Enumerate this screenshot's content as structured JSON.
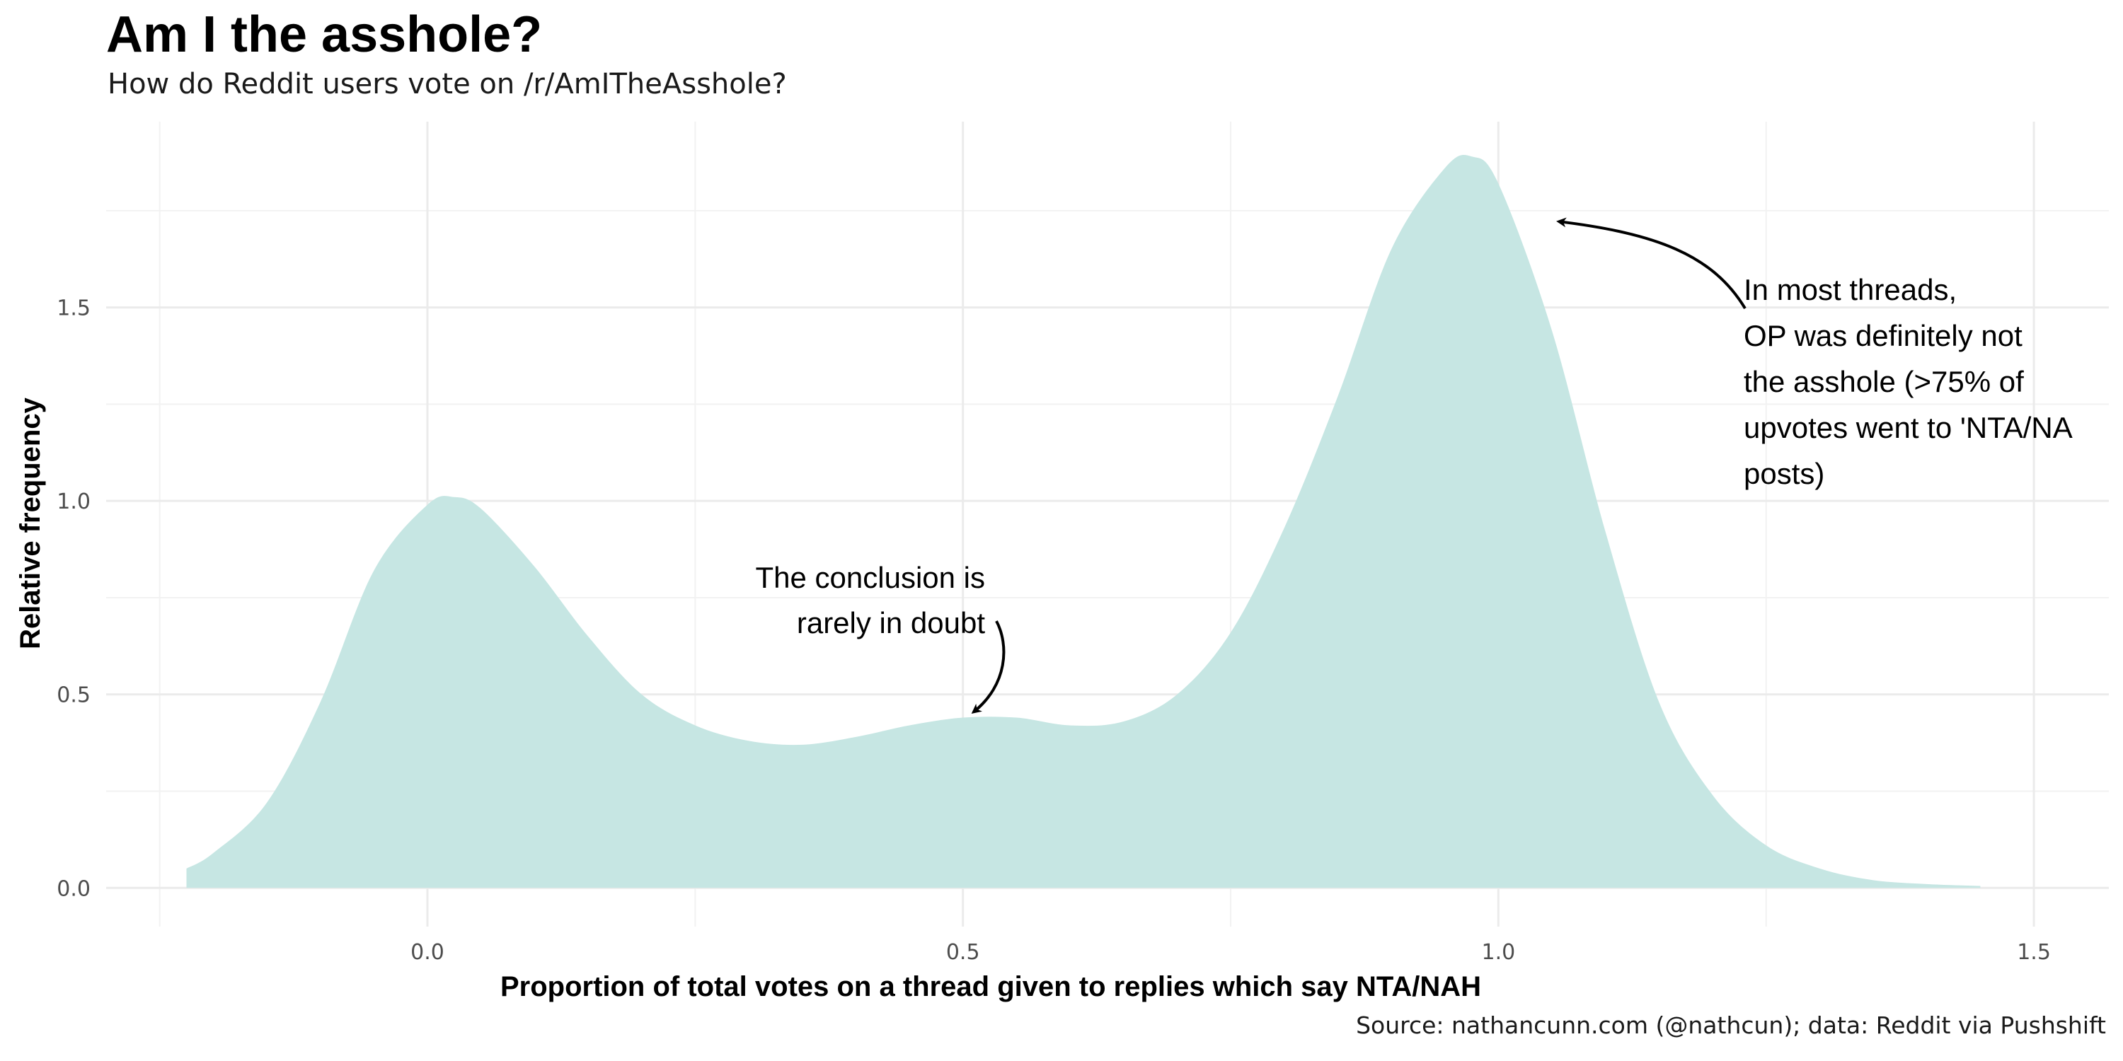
{
  "chart_data": {
    "type": "area",
    "title": "Am I the asshole?",
    "subtitle": "How do Reddit users vote on /r/AmITheAsshole?",
    "xlabel": "Proportion of total votes on a thread given to replies which say NTA/NAH",
    "ylabel": "Relative frequency",
    "caption": "Source: nathancunn.com (@nathcun); data: Reddit via Pushshift",
    "xlim": [
      -0.3,
      1.57
    ],
    "ylim": [
      -0.1,
      1.98
    ],
    "x_ticks": [
      0.0,
      0.5,
      1.0,
      1.5
    ],
    "x_tick_labels": [
      "0.0",
      "0.5",
      "1.0",
      "1.5"
    ],
    "y_ticks": [
      0.0,
      0.5,
      1.0,
      1.5
    ],
    "y_tick_labels": [
      "0.0",
      "0.5",
      "1.0",
      "1.5"
    ],
    "grid": true,
    "fill_color": "#c6e6e3",
    "x": [
      -0.225,
      -0.2,
      -0.15,
      -0.1,
      -0.05,
      0.0,
      0.025,
      0.05,
      0.1,
      0.15,
      0.2,
      0.25,
      0.3,
      0.35,
      0.4,
      0.45,
      0.5,
      0.55,
      0.6,
      0.65,
      0.7,
      0.75,
      0.8,
      0.85,
      0.9,
      0.95,
      0.975,
      1.0,
      1.05,
      1.1,
      1.15,
      1.2,
      1.25,
      1.3,
      1.35,
      1.4,
      1.45
    ],
    "y": [
      0.05,
      0.09,
      0.22,
      0.48,
      0.82,
      0.99,
      1.01,
      0.98,
      0.83,
      0.65,
      0.5,
      0.42,
      0.38,
      0.37,
      0.39,
      0.42,
      0.44,
      0.44,
      0.42,
      0.43,
      0.5,
      0.66,
      0.93,
      1.27,
      1.65,
      1.86,
      1.89,
      1.82,
      1.44,
      0.92,
      0.48,
      0.24,
      0.11,
      0.05,
      0.02,
      0.01,
      0.005
    ],
    "annotations": [
      {
        "lines": [
          "The conclusion is",
          "rarely in doubt"
        ],
        "align": "right",
        "arrow_to": [
          0.51,
          0.44
        ]
      },
      {
        "lines": [
          "In most threads,",
          "OP was definitely not",
          "the asshole (>75% of",
          "upvotes went to 'NTA/NA",
          "posts)"
        ],
        "align": "left",
        "arrow_to": [
          1.05,
          1.7
        ]
      }
    ]
  }
}
